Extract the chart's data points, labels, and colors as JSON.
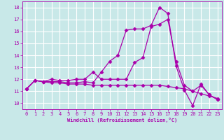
{
  "xlabel": "Windchill (Refroidissement éolien,°C)",
  "bg_color": "#c8e8e8",
  "line_color": "#aa00aa",
  "xlim": [
    -0.5,
    23.5
  ],
  "ylim": [
    9.5,
    18.5
  ],
  "xticks": [
    0,
    1,
    2,
    3,
    4,
    5,
    6,
    7,
    8,
    9,
    10,
    11,
    12,
    13,
    14,
    15,
    16,
    17,
    18,
    19,
    20,
    21,
    22,
    23
  ],
  "yticks": [
    10,
    11,
    12,
    13,
    14,
    15,
    16,
    17,
    18
  ],
  "grid_color": "#ffffff",
  "curve1_x": [
    0,
    1,
    2,
    3,
    4,
    5,
    6,
    7,
    8,
    9,
    10,
    11,
    12,
    13,
    14,
    15,
    16,
    17,
    18,
    19,
    20,
    21,
    22,
    23
  ],
  "curve1_y": [
    11.2,
    11.9,
    11.8,
    11.8,
    11.8,
    11.7,
    11.7,
    11.8,
    11.7,
    12.6,
    13.5,
    14.0,
    16.1,
    16.2,
    16.2,
    16.5,
    18.0,
    17.5,
    13.1,
    11.1,
    9.8,
    11.6,
    10.7,
    10.3
  ],
  "curve2_x": [
    0,
    1,
    2,
    3,
    4,
    5,
    6,
    7,
    8,
    9,
    10,
    11,
    12,
    13,
    14,
    15,
    16,
    17,
    18,
    19,
    20,
    21,
    22,
    23
  ],
  "curve2_y": [
    11.2,
    11.9,
    11.8,
    11.7,
    11.7,
    11.6,
    11.6,
    11.6,
    11.5,
    11.5,
    11.5,
    11.5,
    11.5,
    11.5,
    11.5,
    11.5,
    11.5,
    11.4,
    11.3,
    11.2,
    11.0,
    10.8,
    10.6,
    10.4
  ],
  "curve3_x": [
    0,
    1,
    2,
    3,
    4,
    5,
    6,
    7,
    8,
    9,
    10,
    11,
    12,
    13,
    14,
    15,
    16,
    17,
    18,
    19,
    20,
    21,
    22,
    23
  ],
  "curve3_y": [
    11.2,
    11.9,
    11.8,
    12.0,
    11.9,
    11.9,
    12.0,
    12.0,
    12.6,
    12.0,
    12.0,
    12.0,
    12.0,
    13.4,
    13.8,
    16.4,
    16.6,
    17.0,
    13.5,
    11.5,
    11.0,
    11.5,
    10.7,
    10.3
  ],
  "marker": "D",
  "markersize": 2.5,
  "linewidth": 0.9,
  "label_fontsize": 5.0,
  "tick_fontsize": 5.0
}
